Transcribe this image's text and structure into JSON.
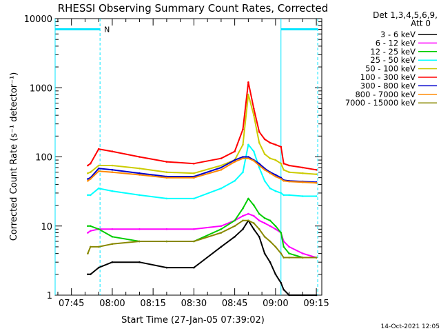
{
  "chart_data": {
    "type": "line",
    "title": "RHESSI Observing Summary Count Rates, Corrected",
    "xlabel": "Start Time (27-Jan-05 07:39:02)",
    "ylabel": "Corrected Count Rate (s⁻¹ detector⁻¹)",
    "yscale": "log",
    "ylim": [
      1,
      10000
    ],
    "xlim": [
      "07:39",
      "09:17"
    ],
    "x_ticks": [
      "07:45",
      "08:00",
      "08:15",
      "08:30",
      "08:45",
      "09:00",
      "09:15"
    ],
    "y_ticks": [
      "1",
      "10",
      "100",
      "1000",
      "10000"
    ],
    "legend_header": [
      "Det 1,3,4,5,6,9,",
      "Att 0"
    ],
    "legend_position": "top-right",
    "timestamp": "14-Oct-2021 12:05",
    "markers": {
      "night_label": "N",
      "cyan_level": 7000,
      "vertical_lines": [
        "07:39",
        "07:55.5",
        "09:02",
        "09:15.5"
      ],
      "gap_intervals": [
        [
          "07:39",
          "07:55.5"
        ],
        [
          "09:02",
          "09:15.5"
        ]
      ]
    },
    "x": [
      "07:51",
      "07:52",
      "07:55",
      "08:00",
      "08:10",
      "08:20",
      "08:30",
      "08:40",
      "08:45",
      "08:48",
      "08:50",
      "08:52",
      "08:54",
      "08:56",
      "08:58",
      "09:00",
      "09:02",
      "09:03",
      "09:05",
      "09:10",
      "09:15"
    ],
    "series": [
      {
        "name": "3 - 6 keV",
        "color": "#000000",
        "values": [
          2,
          2,
          2.5,
          3,
          3,
          2.5,
          2.5,
          5,
          7,
          9,
          12,
          9,
          7,
          4,
          3,
          2,
          1.5,
          1.2,
          1,
          1,
          1
        ]
      },
      {
        "name": "6 - 12 keV",
        "color": "#ff00ff",
        "values": [
          8,
          8.5,
          9,
          9,
          9,
          9,
          9,
          10,
          12,
          14,
          15,
          14,
          12,
          11,
          10,
          9,
          8,
          6,
          5,
          4,
          3.5
        ]
      },
      {
        "name": "12 - 25 keV",
        "color": "#00cc00",
        "values": [
          10,
          10,
          9,
          7,
          6,
          6,
          6,
          9,
          12,
          18,
          25,
          20,
          15,
          13,
          12,
          10,
          8,
          5,
          4,
          3.5,
          3.5
        ]
      },
      {
        "name": "25 - 50 keV",
        "color": "#00ffff",
        "values": [
          28,
          28,
          35,
          32,
          28,
          25,
          25,
          35,
          45,
          60,
          150,
          120,
          70,
          45,
          35,
          32,
          30,
          28,
          28,
          27,
          27
        ]
      },
      {
        "name": "50 - 100 keV",
        "color": "#cccc00",
        "values": [
          58,
          60,
          75,
          75,
          68,
          60,
          58,
          75,
          90,
          150,
          800,
          400,
          160,
          110,
          95,
          90,
          80,
          65,
          60,
          58,
          56
        ]
      },
      {
        "name": "100 - 300 keV",
        "color": "#ff0000",
        "values": [
          75,
          80,
          130,
          120,
          100,
          85,
          80,
          95,
          120,
          250,
          1200,
          500,
          230,
          180,
          160,
          150,
          140,
          80,
          75,
          70,
          65
        ]
      },
      {
        "name": "300 - 800 keV",
        "color": "#0000cc",
        "values": [
          48,
          50,
          68,
          65,
          58,
          52,
          52,
          70,
          90,
          100,
          100,
          90,
          80,
          68,
          60,
          55,
          50,
          46,
          45,
          44,
          43
        ]
      },
      {
        "name": "800 - 7000 keV",
        "color": "#ff8800",
        "values": [
          45,
          48,
          62,
          60,
          55,
          50,
          50,
          65,
          85,
          95,
          95,
          88,
          75,
          65,
          58,
          52,
          48,
          45,
          44,
          43,
          42
        ]
      },
      {
        "name": "7000 - 15000 keV",
        "color": "#888800",
        "values": [
          4,
          5,
          5,
          5.5,
          6,
          6,
          6,
          8,
          10,
          12,
          12,
          11,
          9,
          7,
          6,
          5,
          4,
          3.5,
          3.5,
          3.5,
          3.5
        ]
      }
    ]
  }
}
